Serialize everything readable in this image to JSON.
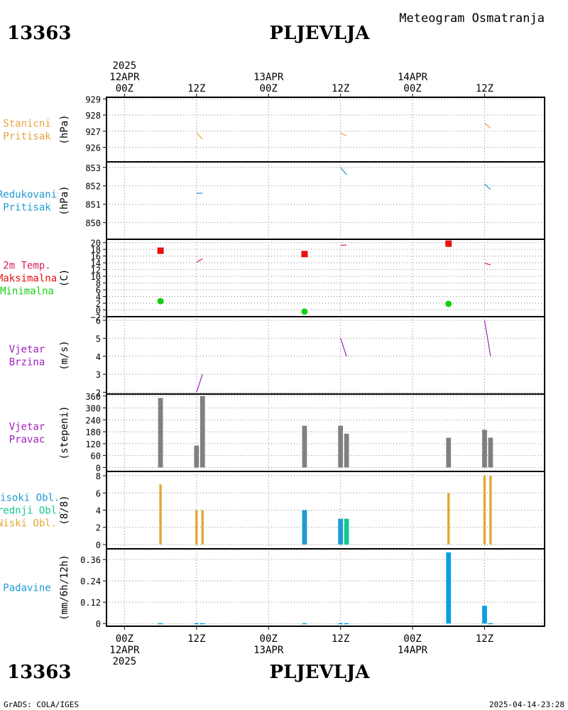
{
  "header": {
    "station_id": "13363",
    "station_name": "PLJEVLJA",
    "subtitle": "Meteogram Osmatranja"
  },
  "footer": {
    "station_id": "13363",
    "station_name": "PLJEVLJA",
    "credit": "GrADS: COLA/IGES",
    "timestamp": "2025-04-14-23:28"
  },
  "colors": {
    "station_pressure": "#e8a040",
    "reduced_pressure": "#1e9ad6",
    "temp_title": "#d81e5b",
    "tmax": "#e81010",
    "tmin": "#10d010",
    "wind": "#a020c0",
    "wind_dir_bar": "#808080",
    "cloud_high": "#1e9ad6",
    "cloud_mid": "#10c890",
    "cloud_low": "#e0a830",
    "precip": "#0aa0e0"
  },
  "chart_data": {
    "type": "meteogram",
    "time_axis": {
      "top_labels": [
        {
          "t": 0,
          "lines": [
            "2025",
            "12APR",
            "00Z"
          ]
        },
        {
          "t": 12,
          "lines": [
            "12Z"
          ]
        },
        {
          "t": 24,
          "lines": [
            "13APR",
            "00Z"
          ]
        },
        {
          "t": 36,
          "lines": [
            "12Z"
          ]
        },
        {
          "t": 48,
          "lines": [
            "14APR",
            "00Z"
          ]
        },
        {
          "t": 60,
          "lines": [
            "12Z"
          ]
        }
      ],
      "bottom_labels": [
        {
          "t": 0,
          "lines": [
            "00Z",
            "12APR",
            "2025"
          ]
        },
        {
          "t": 12,
          "lines": [
            "12Z"
          ]
        },
        {
          "t": 24,
          "lines": [
            "00Z",
            "13APR"
          ]
        },
        {
          "t": 36,
          "lines": [
            "12Z"
          ]
        },
        {
          "t": 48,
          "lines": [
            "00Z",
            "14APR"
          ]
        },
        {
          "t": 60,
          "lines": [
            "12Z"
          ]
        }
      ],
      "range": [
        -3,
        70
      ]
    },
    "panels": [
      {
        "id": "station_pressure",
        "labels": [
          "Stanicni",
          "Pritisak"
        ],
        "label_colors": [
          "#e8a040",
          "#e8a040"
        ],
        "unit": "(hPa)",
        "ylim": [
          925.1,
          929.1
        ],
        "ticks": [
          929,
          928,
          927,
          926
        ],
        "segments": [
          {
            "t0": 12,
            "v0": 926.9,
            "t1": 13,
            "v1": 926.5,
            "color": "#e8a040"
          },
          {
            "t0": 36,
            "v0": 926.9,
            "t1": 37,
            "v1": 926.7,
            "color": "#e8a040"
          },
          {
            "t0": 60,
            "v0": 927.5,
            "t1": 61,
            "v1": 927.2,
            "color": "#e8a040"
          }
        ]
      },
      {
        "id": "reduced_pressure",
        "labels": [
          "Redukovani",
          "Pritisak"
        ],
        "label_colors": [
          "#1e9ad6",
          "#1e9ad6"
        ],
        "unit": "(hPa)",
        "ylim": [
          849.1,
          853.3
        ],
        "ticks": [
          853,
          852,
          851,
          850
        ],
        "segments": [
          {
            "t0": 12,
            "v0": 851.6,
            "t1": 13,
            "v1": 851.6,
            "color": "#1e9ad6"
          },
          {
            "t0": 36,
            "v0": 853.0,
            "t1": 37,
            "v1": 852.6,
            "color": "#1e9ad6"
          },
          {
            "t0": 60,
            "v0": 852.1,
            "t1": 61,
            "v1": 851.8,
            "color": "#1e9ad6"
          }
        ]
      },
      {
        "id": "temperature",
        "labels": [
          "2m Temp.",
          "Maksimalna",
          "Minimalna"
        ],
        "label_colors": [
          "#d81e5b",
          "#e81010",
          "#10d010"
        ],
        "unit": "(C)",
        "ylim": [
          -2,
          21
        ],
        "ticks": [
          20,
          18,
          16,
          14,
          12,
          10,
          8,
          6,
          4,
          2,
          0,
          -2
        ],
        "segments": [
          {
            "t0": 12,
            "v0": 14.2,
            "t1": 13,
            "v1": 15.2,
            "color": "#d81e5b"
          },
          {
            "t0": 36,
            "v0": 19.2,
            "t1": 37,
            "v1": 19.3,
            "color": "#d81e5b"
          },
          {
            "t0": 60,
            "v0": 13.9,
            "t1": 61,
            "v1": 13.4,
            "color": "#d81e5b"
          }
        ],
        "tmax": [
          {
            "t": 6,
            "v": 17.6
          },
          {
            "t": 30,
            "v": 16.6
          },
          {
            "t": 54,
            "v": 19.7
          }
        ],
        "tmin": [
          {
            "t": 6,
            "v": 2.6
          },
          {
            "t": 30,
            "v": -0.5
          },
          {
            "t": 54,
            "v": 1.8
          }
        ]
      },
      {
        "id": "wind_speed",
        "labels": [
          "Vjetar",
          "Brzina"
        ],
        "label_colors": [
          "#a020c0",
          "#a020c0"
        ],
        "unit": "(m/s)",
        "ylim": [
          1.9,
          6.2
        ],
        "ticks": [
          6,
          5,
          4,
          3,
          2
        ],
        "segments": [
          {
            "t0": 12,
            "v0": 2.0,
            "t1": 13,
            "v1": 3.0,
            "color": "#a020c0"
          },
          {
            "t0": 36,
            "v0": 5.0,
            "t1": 37,
            "v1": 4.0,
            "color": "#a020c0"
          },
          {
            "t0": 60,
            "v0": 6.0,
            "t1": 61,
            "v1": 4.0,
            "color": "#a020c0"
          }
        ]
      },
      {
        "id": "wind_direction",
        "labels": [
          "Vjetar",
          "Pravac"
        ],
        "label_colors": [
          "#a020c0",
          "#a020c0"
        ],
        "unit": "(stepeni)",
        "ylim": [
          -20,
          370
        ],
        "ticks": [
          360,
          300,
          240,
          180,
          120,
          60,
          0
        ],
        "bars": [
          {
            "t": 6,
            "v": 350,
            "color": "#808080"
          },
          {
            "t": 12,
            "v": 110,
            "color": "#808080"
          },
          {
            "t": 13,
            "v": 360,
            "color": "#808080"
          },
          {
            "t": 30,
            "v": 210,
            "color": "#808080"
          },
          {
            "t": 36,
            "v": 210,
            "color": "#808080"
          },
          {
            "t": 37,
            "v": 170,
            "color": "#808080"
          },
          {
            "t": 54,
            "v": 150,
            "color": "#808080"
          },
          {
            "t": 60,
            "v": 190,
            "color": "#808080"
          },
          {
            "t": 61,
            "v": 150,
            "color": "#808080"
          }
        ],
        "bar_width_h": 0.8
      },
      {
        "id": "clouds",
        "labels": [
          "Visoki Obl.",
          "Srednji Obl.",
          "Niski Obl."
        ],
        "label_colors": [
          "#1e9ad6",
          "#10c890",
          "#e0a830"
        ],
        "unit": "(8/8)",
        "ylim": [
          -0.5,
          8.5
        ],
        "ticks": [
          8,
          6,
          4,
          2,
          0
        ],
        "bars": [
          {
            "t": 6,
            "v": 7,
            "color": "#e0a830",
            "w": 0.4
          },
          {
            "t": 12,
            "v": 4,
            "color": "#e0a830",
            "w": 0.4
          },
          {
            "t": 13,
            "v": 4,
            "color": "#e0a830",
            "w": 0.4
          },
          {
            "t": 30,
            "v": 4,
            "color": "#1e9ad6",
            "w": 0.8
          },
          {
            "t": 36,
            "v": 3,
            "color": "#1e9ad6",
            "w": 0.8
          },
          {
            "t": 37,
            "v": 3,
            "color": "#10c890",
            "w": 0.8
          },
          {
            "t": 54,
            "v": 6,
            "color": "#e0a830",
            "w": 0.4
          },
          {
            "t": 60,
            "v": 8,
            "color": "#e0a830",
            "w": 0.4
          },
          {
            "t": 61,
            "v": 8,
            "color": "#e0a830",
            "w": 0.4
          }
        ]
      },
      {
        "id": "precipitation",
        "labels": [
          "Padavine"
        ],
        "label_colors": [
          "#1e9ad6"
        ],
        "unit": "(mm/6h/12h)",
        "ylim": [
          -0.015,
          0.42
        ],
        "ticks": [
          0.36,
          0.24,
          0.12,
          0
        ],
        "tick_labels": [
          "0.36",
          "0.24",
          "0.12",
          "0"
        ],
        "bars": [
          {
            "t": 6,
            "v": 0.002,
            "color": "#0aa0e0"
          },
          {
            "t": 12,
            "v": 0.002,
            "color": "#0aa0e0"
          },
          {
            "t": 13,
            "v": 0.002,
            "color": "#0aa0e0"
          },
          {
            "t": 30,
            "v": 0.002,
            "color": "#0aa0e0"
          },
          {
            "t": 36,
            "v": 0.002,
            "color": "#0aa0e0"
          },
          {
            "t": 37,
            "v": 0.002,
            "color": "#0aa0e0"
          },
          {
            "t": 54,
            "v": 0.4,
            "color": "#0aa0e0"
          },
          {
            "t": 60,
            "v": 0.1,
            "color": "#0aa0e0"
          },
          {
            "t": 61,
            "v": 0.002,
            "color": "#0aa0e0"
          }
        ],
        "bar_width_h": 0.8
      }
    ]
  }
}
